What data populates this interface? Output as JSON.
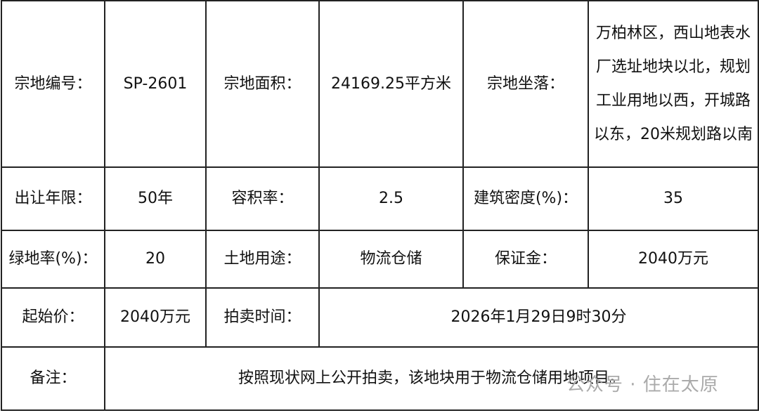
{
  "rows": [
    [
      {
        "label": "宗地编号："
      },
      {
        "value": "SP-2601"
      },
      {
        "label": "宗地面积："
      },
      {
        "value": "24169.25平方米"
      },
      {
        "label": "宗地坐落："
      },
      {
        "value": "万柏林区，西山地表水厂选址地块以北，规划工业用地以西，开城路以东，20米规划路以南"
      }
    ],
    [
      {
        "label": "出让年限："
      },
      {
        "value": "50年"
      },
      {
        "label": "容积率："
      },
      {
        "value": "2.5"
      },
      {
        "label": "建筑密度(%)："
      },
      {
        "value": "35"
      }
    ],
    [
      {
        "label": "绿地率(%)："
      },
      {
        "value": "20"
      },
      {
        "label": "土地用途："
      },
      {
        "value": "物流仓储"
      },
      {
        "label": "保证金："
      },
      {
        "value": "2040万元"
      }
    ],
    [
      {
        "label": "起始价："
      },
      {
        "value": "2040万元"
      },
      {
        "label": "拍卖时间："
      },
      {
        "value": "2026年1月29日9时30分"
      }
    ],
    [
      {
        "label": "备注："
      },
      {
        "value": "按照现状网上公开拍卖，该地块用于物流仓储用地项目。"
      }
    ]
  ],
  "watermark": "公众号 · 住在太原"
}
